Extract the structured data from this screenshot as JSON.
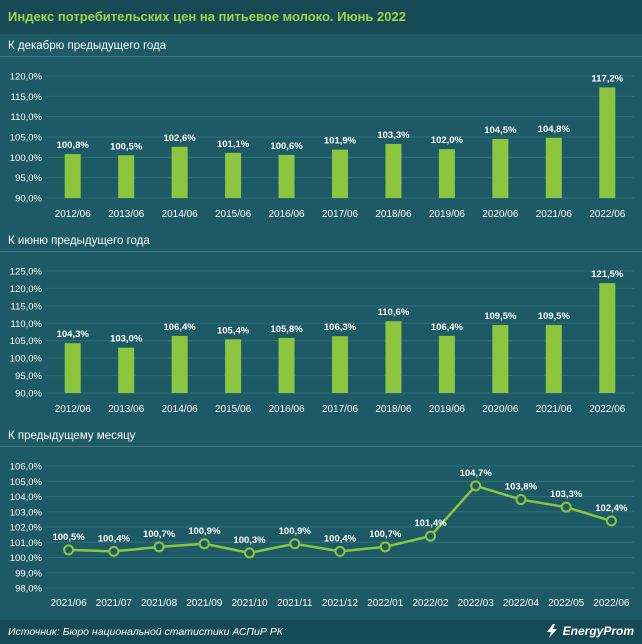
{
  "title": "Индекс потребительских цен на питьевое молоко. Июнь 2022",
  "source": "Источник: Бюро национальной статистики АСПиР РК",
  "logo_text": "EnergyProm",
  "colors": {
    "background": "#1d5a65",
    "bar": "#8cc63f",
    "line": "#8cc63f",
    "title": "#9bd64a"
  },
  "chart_data": [
    {
      "type": "bar",
      "title": "К декабрю предыдущего года",
      "categories": [
        "2012/06",
        "2013/06",
        "2014/06",
        "2015/06",
        "2016/06",
        "2017/06",
        "2018/06",
        "2019/06",
        "2020/06",
        "2021/06",
        "2022/06"
      ],
      "values": [
        100.8,
        100.5,
        102.6,
        101.1,
        100.6,
        101.9,
        103.3,
        102.0,
        104.5,
        104.8,
        117.2
      ],
      "labels": [
        "100,8%",
        "100,5%",
        "102,6%",
        "101,1%",
        "100,6%",
        "101,9%",
        "103,3%",
        "102,0%",
        "104,5%",
        "104,8%",
        "117,2%"
      ],
      "yticks": [
        "120,0%",
        "115,0%",
        "110,0%",
        "105,0%",
        "100,0%",
        "95,0%",
        "90,0%"
      ],
      "ylim": [
        90,
        120
      ],
      "ystep": 5
    },
    {
      "type": "bar",
      "title": "К июню предыдущего года",
      "categories": [
        "2012/06",
        "2013/06",
        "2014/06",
        "2015/06",
        "2016/06",
        "2017/06",
        "2018/06",
        "2019/06",
        "2020/06",
        "2021/06",
        "2022/06"
      ],
      "values": [
        104.3,
        103.0,
        106.4,
        105.4,
        105.8,
        106.3,
        110.6,
        106.4,
        109.5,
        109.5,
        121.5
      ],
      "labels": [
        "104,3%",
        "103,0%",
        "106,4%",
        "105,4%",
        "105,8%",
        "106,3%",
        "110,6%",
        "106,4%",
        "109,5%",
        "109,5%",
        "121,5%"
      ],
      "yticks": [
        "125,0%",
        "120,0%",
        "115,0%",
        "110,0%",
        "105,0%",
        "100,0%",
        "95,0%",
        "90,0%"
      ],
      "ylim": [
        90,
        125
      ],
      "ystep": 5
    },
    {
      "type": "line",
      "title": "К предыдущему месяцу",
      "categories": [
        "2021/06",
        "2021/07",
        "2021/08",
        "2021/09",
        "2021/10",
        "2021/11",
        "2021/12",
        "2022/01",
        "2022/02",
        "2022/03",
        "2022/04",
        "2022/05",
        "2022/06"
      ],
      "values": [
        100.5,
        100.4,
        100.7,
        100.9,
        100.3,
        100.9,
        100.4,
        100.7,
        101.4,
        104.7,
        103.8,
        103.3,
        102.4
      ],
      "labels": [
        "100,5%",
        "100,4%",
        "100,7%",
        "100,9%",
        "100,3%",
        "100,9%",
        "100,4%",
        "100,7%",
        "101,4%",
        "104,7%",
        "103,8%",
        "103,3%",
        "102,4%"
      ],
      "yticks": [
        "106,0%",
        "105,0%",
        "104,0%",
        "103,0%",
        "102,0%",
        "101,0%",
        "100,0%",
        "99,0%",
        "98,0%"
      ],
      "ylim": [
        98,
        106
      ],
      "ystep": 1
    }
  ]
}
